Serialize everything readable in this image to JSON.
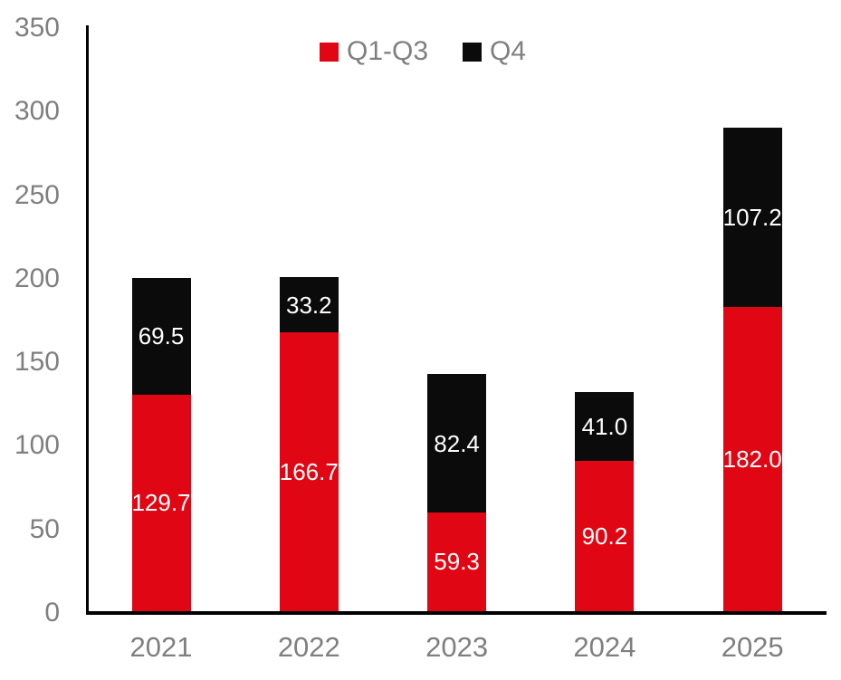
{
  "chart_data": {
    "type": "bar",
    "stacked": true,
    "categories": [
      "2021",
      "2022",
      "2023",
      "2024",
      "2025"
    ],
    "series": [
      {
        "name": "Q1-Q3",
        "color": "#e00613",
        "values": [
          129.7,
          166.7,
          59.3,
          90.2,
          182.0
        ]
      },
      {
        "name": "Q4",
        "color": "#0b0b0b",
        "values": [
          69.5,
          33.2,
          82.4,
          41.0,
          107.2
        ]
      }
    ],
    "totals": [
      199.2,
      199.9,
      141.7,
      131.2,
      289.2
    ],
    "title": "",
    "xlabel": "",
    "ylabel": "",
    "ylim": [
      0,
      350
    ],
    "yticks": [
      0,
      50,
      100,
      150,
      200,
      250,
      300,
      350
    ],
    "grid": false,
    "legend_position": "top",
    "value_label_color": "#ffffff",
    "value_label_decimals": 1,
    "axis_line_color": "#000000",
    "tick_label_color": "#7f7f7f"
  }
}
